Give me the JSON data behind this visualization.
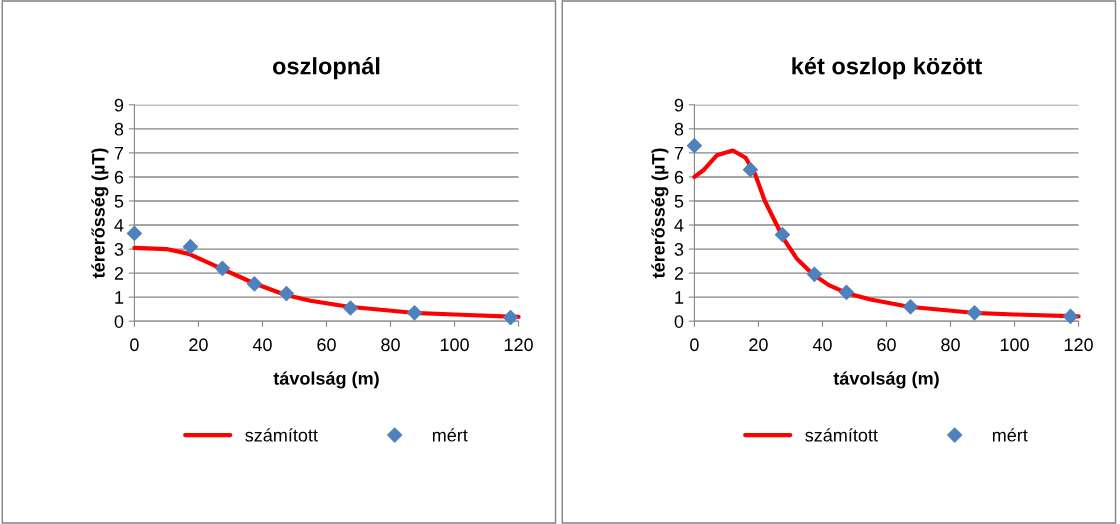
{
  "chart_data": [
    {
      "type": "line",
      "title": "oszlopnál",
      "xlabel": "távolság (m)",
      "ylabel": "térerősség (µT)",
      "xlim": [
        0,
        120
      ],
      "xticks": [
        0,
        20,
        40,
        60,
        80,
        100,
        120
      ],
      "ylim": [
        0,
        9
      ],
      "yticks": [
        0,
        1,
        2,
        3,
        4,
        5,
        6,
        7,
        8,
        9
      ],
      "grid": "y",
      "legend": "bottom",
      "series": [
        {
          "name": "számított",
          "color": "#ff0000",
          "marker": "none",
          "line_style": "solid",
          "x": [
            0,
            10,
            17,
            27,
            37,
            47,
            55,
            67,
            87,
            100,
            120
          ],
          "values": [
            3.05,
            3.0,
            2.8,
            2.2,
            1.6,
            1.1,
            0.85,
            0.6,
            0.35,
            0.28,
            0.18
          ]
        },
        {
          "name": "mért",
          "type": "scatter",
          "color": "#4f81bd",
          "marker": "diamond",
          "x": [
            0,
            17.5,
            27.5,
            37.5,
            47.5,
            67.5,
            87.5,
            117.5
          ],
          "values": [
            3.65,
            3.1,
            2.2,
            1.55,
            1.15,
            0.55,
            0.35,
            0.15
          ]
        }
      ]
    },
    {
      "type": "line",
      "title": "két oszlop között",
      "xlabel": "távolság (m)",
      "ylabel": "térerősség (µT)",
      "xlim": [
        0,
        120
      ],
      "xticks": [
        0,
        20,
        40,
        60,
        80,
        100,
        120
      ],
      "ylim": [
        0,
        9
      ],
      "yticks": [
        0,
        1,
        2,
        3,
        4,
        5,
        6,
        7,
        8,
        9
      ],
      "grid": "y",
      "legend": "bottom",
      "series": [
        {
          "name": "számított",
          "color": "#ff0000",
          "marker": "none",
          "line_style": "solid",
          "x": [
            0,
            3,
            7,
            12,
            16,
            19,
            22,
            25,
            28,
            32,
            37,
            42,
            48,
            55,
            67,
            87,
            100,
            120
          ],
          "values": [
            6.0,
            6.3,
            6.9,
            7.1,
            6.8,
            6.1,
            5.0,
            4.2,
            3.4,
            2.6,
            1.95,
            1.5,
            1.15,
            0.9,
            0.6,
            0.35,
            0.28,
            0.2
          ]
        },
        {
          "name": "mért",
          "type": "scatter",
          "color": "#4f81bd",
          "marker": "diamond",
          "x": [
            0,
            17.5,
            27.5,
            37.5,
            47.5,
            67.5,
            87.5,
            117.5
          ],
          "values": [
            7.3,
            6.3,
            3.6,
            1.95,
            1.2,
            0.6,
            0.35,
            0.2
          ]
        }
      ]
    }
  ]
}
